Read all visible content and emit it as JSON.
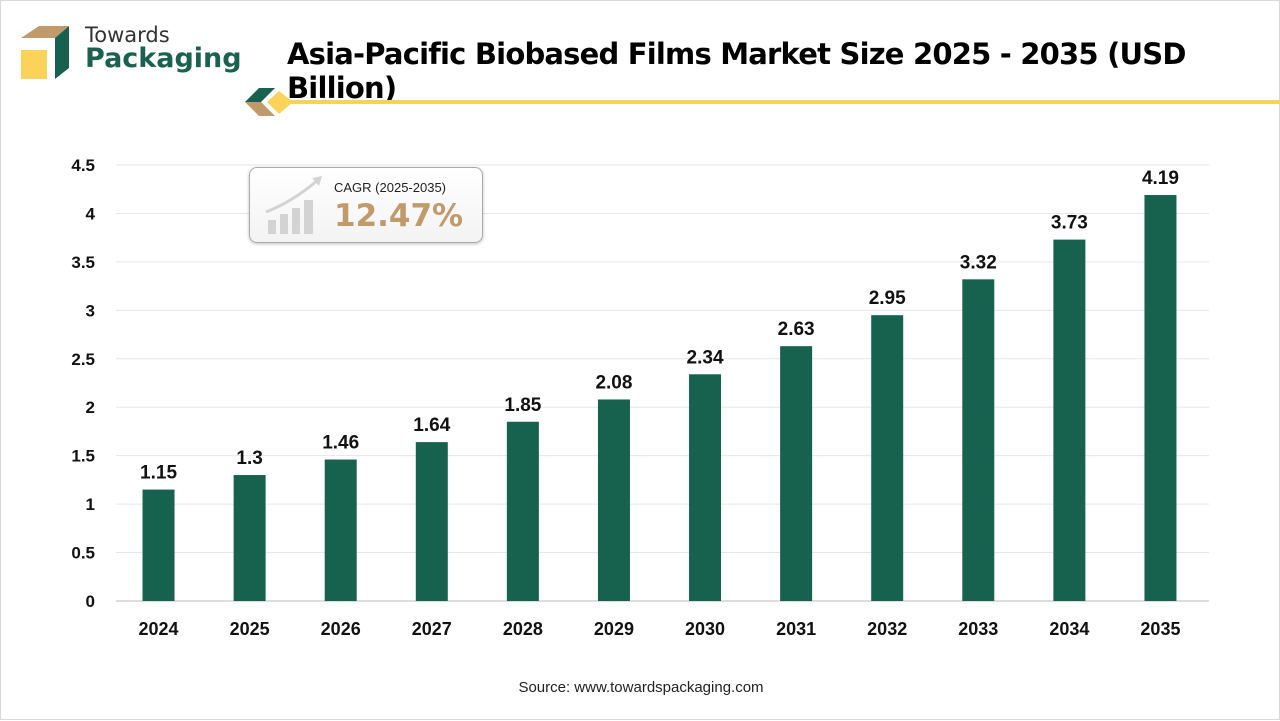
{
  "logo": {
    "line1": "Towards",
    "line2": "Packaging"
  },
  "title": "Asia-Pacific Biobased Films Market Size 2025 - 2035 (USD Billion)",
  "cagr": {
    "label": "CAGR (2025-2035)",
    "value": "12.47%",
    "icon": "growth-chart-icon"
  },
  "source": "Source: www.towardspackaging.com",
  "colors": {
    "bar": "#17624f",
    "accent": "#f5d25a",
    "cagr": "#c19a6b"
  },
  "chart_data": {
    "type": "bar",
    "categories": [
      "2024",
      "2025",
      "2026",
      "2027",
      "2028",
      "2029",
      "2030",
      "2031",
      "2032",
      "2033",
      "2034",
      "2035"
    ],
    "values": [
      1.15,
      1.3,
      1.46,
      1.64,
      1.85,
      2.08,
      2.34,
      2.63,
      2.95,
      3.32,
      3.73,
      4.19
    ],
    "data_labels": [
      "1.15",
      "1.3",
      "1.46",
      "1.64",
      "1.85",
      "2.08",
      "2.34",
      "2.63",
      "2.95",
      "3.32",
      "3.73",
      "4.19"
    ],
    "ylim": [
      0,
      4.5
    ],
    "yticks": [
      "0",
      "0.5",
      "1",
      "1.5",
      "2",
      "2.5",
      "3",
      "3.5",
      "4",
      "4.5"
    ],
    "grid": true,
    "xlabel": "",
    "ylabel": ""
  }
}
